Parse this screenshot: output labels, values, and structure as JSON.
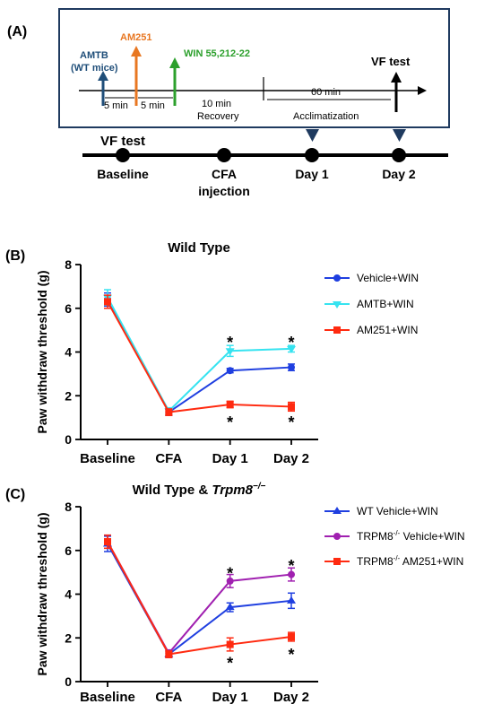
{
  "panel_a": {
    "label": "(A)",
    "drugs": [
      {
        "name": "AMTB\n(WT mice)",
        "color": "#1f4e79"
      },
      {
        "name": "AM251",
        "color": "#e87722"
      },
      {
        "name": "WIN 55,212-22",
        "color": "#2ca02c"
      }
    ],
    "intervals": [
      "5 min",
      "5 min"
    ],
    "recovery": {
      "duration": "10 min",
      "label": "Recovery"
    },
    "acclimatization": {
      "duration": "60 min",
      "label": "Acclimatization"
    },
    "vf_inset": "VF test",
    "vf_main": "VF test",
    "timepoints": [
      "Baseline",
      "CFA\ninjection",
      "Day 1",
      "Day 2"
    ]
  },
  "colors": {
    "blue": "#1f3fe0",
    "cyan": "#36e3f0",
    "red": "#ff2a10",
    "purple": "#a020b0",
    "navy": "#1f3a5f"
  },
  "chart_data": [
    {
      "panel_label": "(B)",
      "type": "line",
      "title": "Wild Type",
      "title_italic": "",
      "ylabel": "Paw withdraw threshold (g)",
      "xlabel": "",
      "categories": [
        "Baseline",
        "CFA",
        "Day 1",
        "Day 2"
      ],
      "ylim": [
        0,
        8
      ],
      "yticks": [
        0,
        2,
        4,
        6,
        8
      ],
      "legend_position": "right",
      "series": [
        {
          "name": "Vehicle+WIN",
          "marker": "circle",
          "color": "#1f3fe0",
          "values": [
            6.4,
            1.25,
            3.15,
            3.3
          ],
          "errors": [
            0.3,
            0.15,
            0.1,
            0.15
          ]
        },
        {
          "name": "AMTB+WIN",
          "marker": "triangle-down",
          "color": "#36e3f0",
          "values": [
            6.5,
            1.3,
            4.05,
            4.15
          ],
          "errors": [
            0.35,
            0.15,
            0.25,
            0.15
          ]
        },
        {
          "name": "AM251+WIN",
          "marker": "square",
          "color": "#ff2a10",
          "values": [
            6.3,
            1.25,
            1.6,
            1.5
          ],
          "errors": [
            0.3,
            0.15,
            0.15,
            0.2
          ]
        }
      ],
      "annotations": [
        {
          "text": "*",
          "category": "Day 1",
          "y": 4.6
        },
        {
          "text": "*",
          "category": "Day 2",
          "y": 4.6
        },
        {
          "text": "*",
          "category": "Day 1",
          "y": 0.95
        },
        {
          "text": "*",
          "category": "Day 2",
          "y": 0.95
        }
      ]
    },
    {
      "panel_label": "(C)",
      "type": "line",
      "title": "Wild Type & ",
      "title_italic": "Trpm8",
      "title_superscript": "−/−",
      "ylabel": "Paw withdraw threshold (g)",
      "xlabel": "",
      "categories": [
        "Baseline",
        "CFA",
        "Day 1",
        "Day 2"
      ],
      "ylim": [
        0,
        8
      ],
      "yticks": [
        0,
        2,
        4,
        6,
        8
      ],
      "legend_position": "right",
      "series": [
        {
          "name": "WT Vehicle+WIN",
          "marker": "triangle-up",
          "color": "#1f3fe0",
          "values": [
            6.3,
            1.25,
            3.4,
            3.7
          ],
          "errors": [
            0.35,
            0.15,
            0.2,
            0.35
          ]
        },
        {
          "name": "TRPM8",
          "name_sup": "-/-",
          "name_rest": " Vehicle+WIN",
          "marker": "circle",
          "color": "#a020b0",
          "values": [
            6.4,
            1.3,
            4.6,
            4.9
          ],
          "errors": [
            0.3,
            0.15,
            0.3,
            0.3
          ]
        },
        {
          "name": "TRPM8",
          "name_sup": "-/-",
          "name_rest": " AM251+WIN",
          "marker": "square",
          "color": "#ff2a10",
          "values": [
            6.4,
            1.25,
            1.7,
            2.05
          ],
          "errors": [
            0.3,
            0.15,
            0.3,
            0.2
          ]
        }
      ],
      "annotations": [
        {
          "text": "*",
          "category": "Day 1",
          "y": 5.1
        },
        {
          "text": "*",
          "category": "Day 2",
          "y": 5.45
        },
        {
          "text": "*",
          "category": "Day 1",
          "y": 1.0
        },
        {
          "text": "*",
          "category": "Day 2",
          "y": 1.4
        }
      ]
    }
  ]
}
